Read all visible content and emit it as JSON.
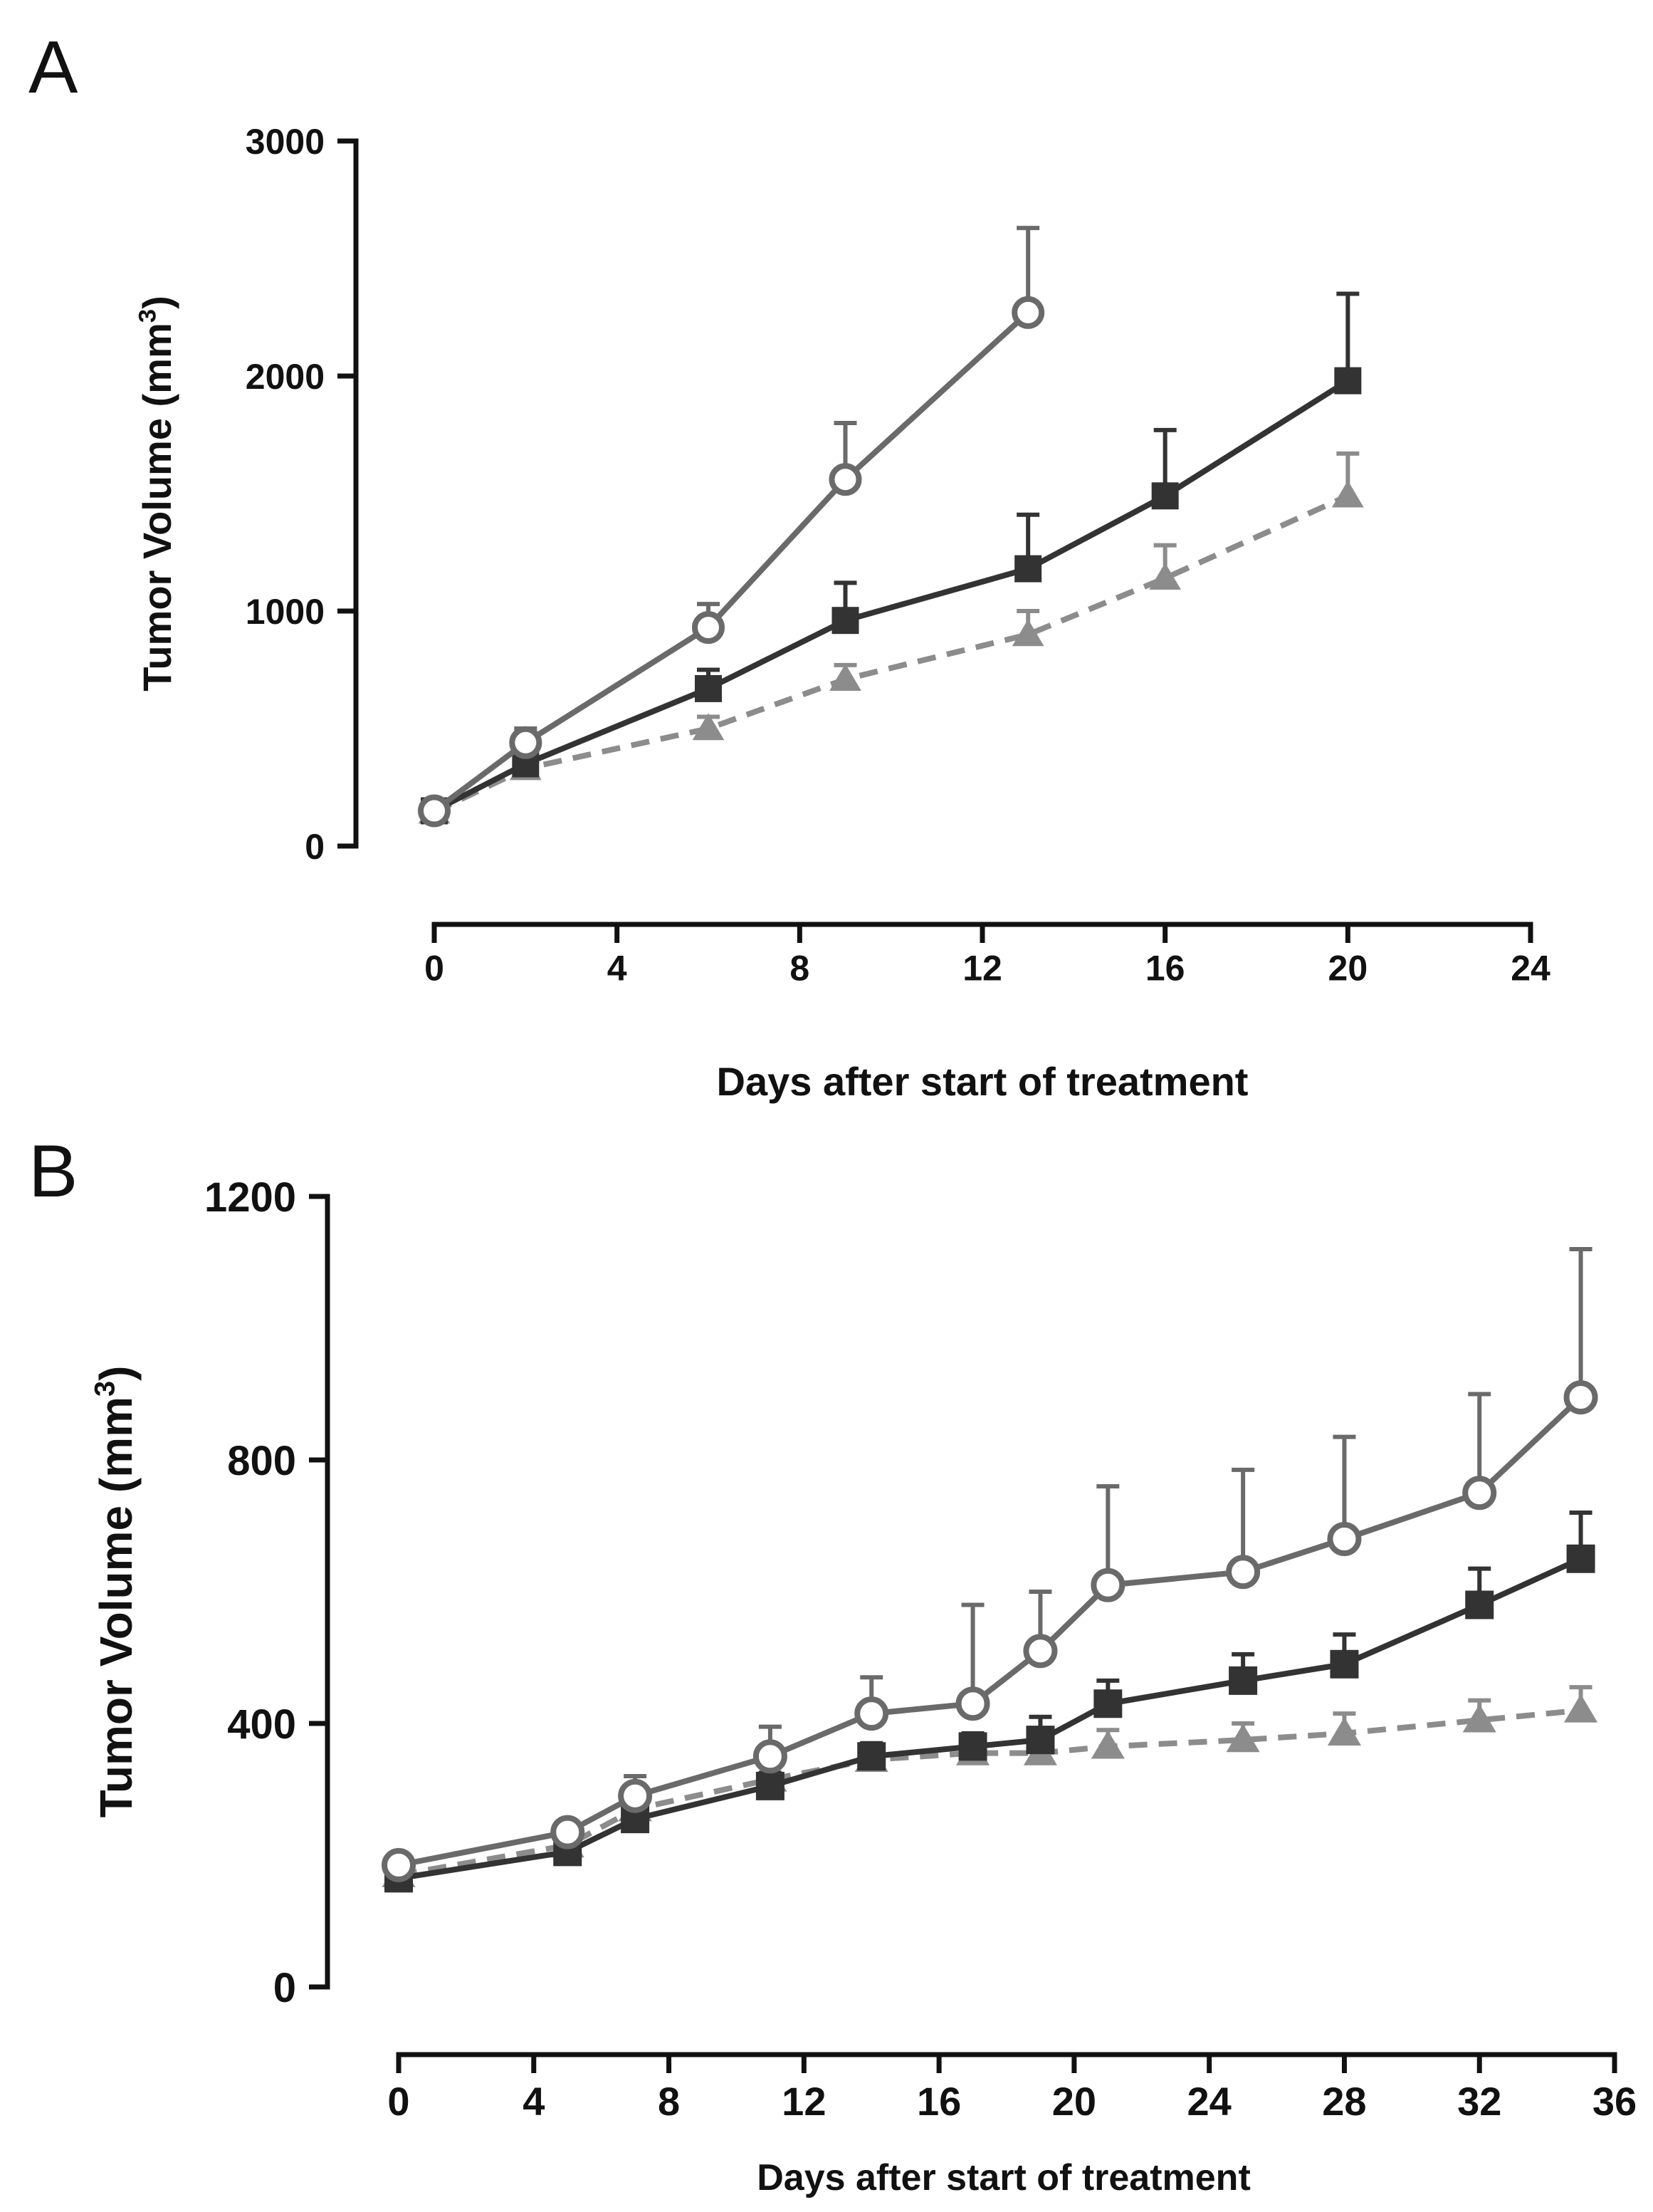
{
  "colors": {
    "series_open_circle": "#6a6a6a",
    "series_square": "#333333",
    "series_triangle": "#8c8c8c",
    "axis": "#111111",
    "background": "#ffffff"
  },
  "chart_data": [
    {
      "panel": "A",
      "type": "line",
      "ylabel_main": "Tumor Volume (mm",
      "ylabel_sup": "3",
      "ylabel_close": ")",
      "xlabel": "Days after start of treatment",
      "xlim": [
        0,
        24
      ],
      "ylim": [
        0,
        3000
      ],
      "xticks": [
        0,
        4,
        8,
        12,
        16,
        20,
        24
      ],
      "yticks": [
        0,
        1000,
        2000,
        3000
      ],
      "series": [
        {
          "marker": "circle-open",
          "line": "solid",
          "color": "#6a6a6a",
          "x": [
            0,
            2,
            6,
            9,
            13
          ],
          "y": [
            150,
            440,
            930,
            1560,
            2270
          ],
          "err": [
            20,
            60,
            100,
            240,
            360
          ]
        },
        {
          "marker": "square",
          "line": "solid",
          "color": "#333333",
          "x": [
            0,
            2,
            6,
            9,
            13,
            16,
            20
          ],
          "y": [
            150,
            350,
            670,
            960,
            1180,
            1490,
            1980
          ],
          "err": [
            20,
            40,
            80,
            160,
            230,
            280,
            370
          ]
        },
        {
          "marker": "triangle",
          "line": "dashed",
          "color": "#8c8c8c",
          "x": [
            0,
            2,
            6,
            9,
            13,
            16,
            20
          ],
          "y": [
            145,
            330,
            500,
            710,
            900,
            1140,
            1490
          ],
          "err": [
            15,
            30,
            50,
            60,
            100,
            140,
            180
          ]
        }
      ]
    },
    {
      "panel": "B",
      "type": "line",
      "ylabel_main": "Tumor Volume (mm",
      "ylabel_sup": "3",
      "ylabel_close": ")",
      "xlabel": "Days after start of treatment",
      "xlim": [
        0,
        36
      ],
      "ylim": [
        0,
        1200
      ],
      "xticks": [
        0,
        4,
        8,
        12,
        16,
        20,
        24,
        28,
        32,
        36
      ],
      "yticks": [
        0,
        400,
        800,
        1200
      ],
      "series": [
        {
          "marker": "circle-open",
          "line": "solid",
          "color": "#6a6a6a",
          "x": [
            0,
            5,
            7,
            11,
            14,
            17,
            19,
            21,
            25,
            28,
            32,
            35
          ],
          "y": [
            185,
            235,
            290,
            350,
            415,
            430,
            510,
            610,
            630,
            680,
            750,
            895
          ],
          "err": [
            10,
            15,
            30,
            45,
            55,
            150,
            90,
            150,
            155,
            155,
            150,
            225
          ]
        },
        {
          "marker": "square",
          "line": "solid",
          "color": "#333333",
          "x": [
            0,
            5,
            7,
            11,
            14,
            17,
            19,
            21,
            25,
            28,
            32,
            35
          ],
          "y": [
            165,
            205,
            255,
            305,
            350,
            365,
            375,
            430,
            465,
            490,
            580,
            650
          ],
          "err": [
            10,
            15,
            20,
            20,
            20,
            20,
            35,
            35,
            40,
            45,
            55,
            70
          ]
        },
        {
          "marker": "triangle",
          "line": "dashed",
          "color": "#8c8c8c",
          "x": [
            0,
            5,
            7,
            11,
            14,
            17,
            19,
            21,
            25,
            28,
            32,
            35
          ],
          "y": [
            170,
            215,
            270,
            315,
            345,
            355,
            355,
            365,
            375,
            385,
            405,
            420
          ],
          "err": [
            10,
            15,
            20,
            20,
            20,
            20,
            25,
            25,
            25,
            30,
            30,
            35
          ]
        }
      ]
    }
  ]
}
